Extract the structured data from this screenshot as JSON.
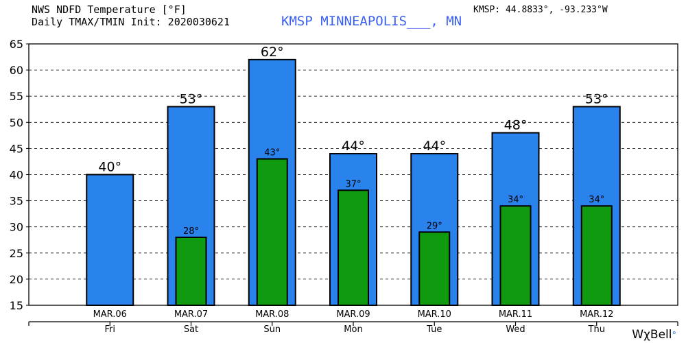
{
  "header": {
    "title_line1": "NWS NDFD Temperature [°F]",
    "title_line2": "Daily TMAX/TMIN Init: 2020030621",
    "station": "KMSP MINNEAPOLIS___, MN",
    "coords": "KMSP: 44.8833°, -93.233°W"
  },
  "brand": {
    "text": "WχBell",
    "mark": "°"
  },
  "colors": {
    "tmax_bar": "#2a82ec",
    "tmin_bar": "#0f9a0f",
    "station_text": "#3a5ef0"
  },
  "chart_data": {
    "type": "bar",
    "categories": [
      "MAR.06",
      "MAR.07",
      "MAR.08",
      "MAR.09",
      "MAR.10",
      "MAR.11",
      "MAR.12"
    ],
    "day_labels": [
      "Fri",
      "Sat",
      "Sun",
      "Mon",
      "Tue",
      "Wed",
      "Thu"
    ],
    "series": [
      {
        "values": [
          40,
          53,
          62,
          44,
          44,
          48,
          53
        ],
        "labels": [
          "40°",
          "53°",
          "62°",
          "44°",
          "44°",
          "48°",
          "53°"
        ],
        "color": "#2a82ec"
      },
      {
        "values": [
          null,
          28,
          43,
          37,
          29,
          34,
          34
        ],
        "labels": [
          "",
          "28°",
          "43°",
          "37°",
          "29°",
          "34°",
          "34°"
        ],
        "color": "#0f9a0f"
      }
    ],
    "ylim": [
      15,
      65
    ],
    "yticks": [
      15,
      20,
      25,
      30,
      35,
      40,
      45,
      50,
      55,
      60,
      65
    ],
    "grid": "dashed-horizontal",
    "legend": "none"
  }
}
